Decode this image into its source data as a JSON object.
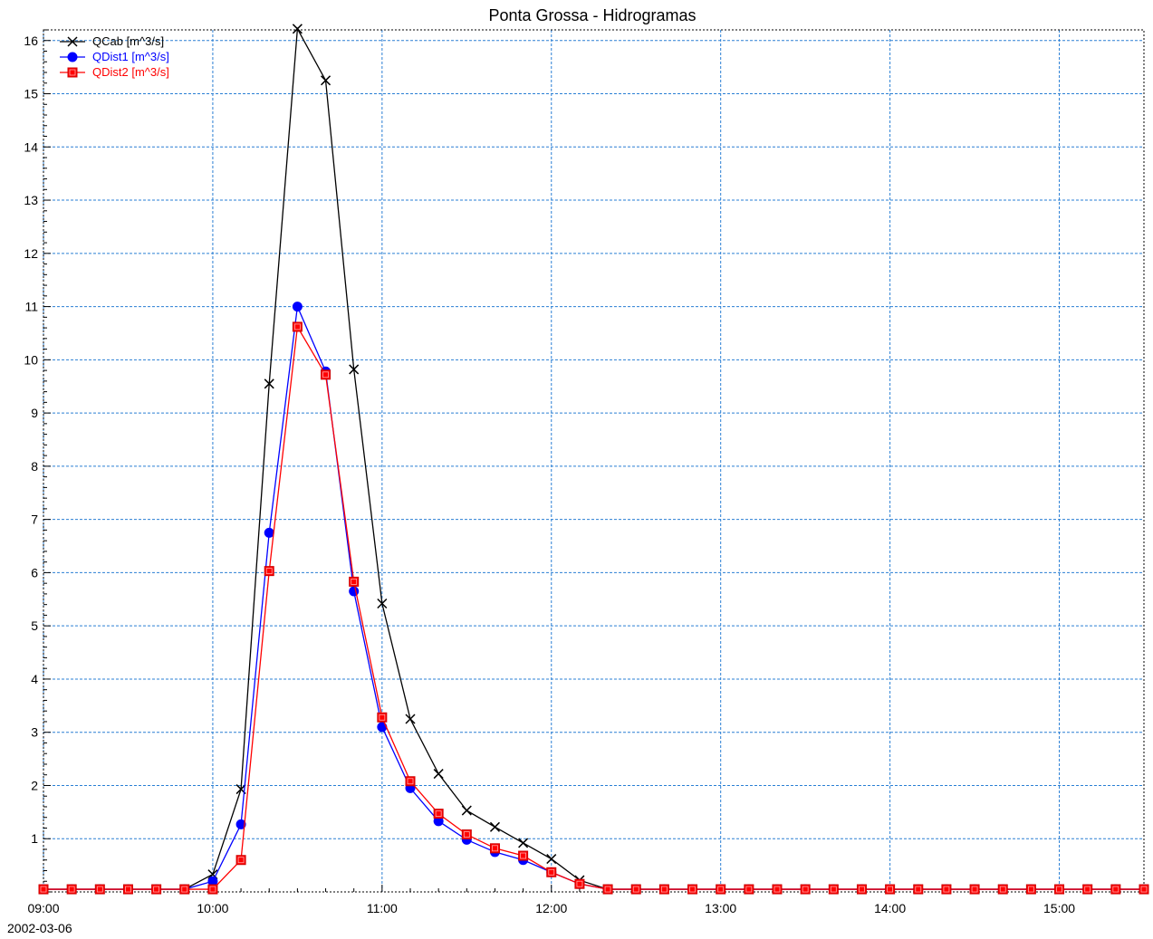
{
  "chart_data": {
    "type": "line",
    "title": "Ponta Grossa - Hidrogramas",
    "xlabel": "",
    "ylabel": "",
    "date_label": "2002-03-06",
    "x_tick_labels": [
      "09:00",
      "10:00",
      "11:00",
      "12:00",
      "13:00",
      "14:00",
      "15:00"
    ],
    "x_tick_hours": [
      9,
      10,
      11,
      12,
      13,
      14,
      15
    ],
    "xlim_hours": [
      9.0,
      15.5
    ],
    "ylim": [
      0,
      16.2
    ],
    "y_tick_labels": [
      "1",
      "2",
      "3",
      "4",
      "5",
      "6",
      "7",
      "8",
      "9",
      "10",
      "11",
      "12",
      "13",
      "14",
      "15",
      "16"
    ],
    "y_ticks": [
      1,
      2,
      3,
      4,
      5,
      6,
      7,
      8,
      9,
      10,
      11,
      12,
      13,
      14,
      15,
      16
    ],
    "grid": true,
    "legend_position": "top-left",
    "series": [
      {
        "name": "QCab [m^3/s]",
        "color": "#000000",
        "marker": "x",
        "points": [
          [
            9.0,
            0.05
          ],
          [
            9.1667,
            0.05
          ],
          [
            9.3333,
            0.05
          ],
          [
            9.5,
            0.05
          ],
          [
            9.6667,
            0.05
          ],
          [
            9.8333,
            0.05
          ],
          [
            10.0,
            0.33
          ],
          [
            10.1667,
            1.93
          ],
          [
            10.3333,
            9.55
          ],
          [
            10.5,
            16.22
          ],
          [
            10.6667,
            15.25
          ],
          [
            10.8333,
            9.82
          ],
          [
            11.0,
            5.42
          ],
          [
            11.1667,
            3.25
          ],
          [
            11.3333,
            2.22
          ],
          [
            11.5,
            1.53
          ],
          [
            11.6667,
            1.22
          ],
          [
            11.8333,
            0.92
          ],
          [
            12.0,
            0.62
          ],
          [
            12.1667,
            0.22
          ],
          [
            12.3333,
            0.05
          ],
          [
            12.5,
            0.05
          ],
          [
            12.6667,
            0.05
          ],
          [
            12.8333,
            0.05
          ],
          [
            13.0,
            0.05
          ],
          [
            13.1667,
            0.05
          ],
          [
            13.3333,
            0.05
          ],
          [
            13.5,
            0.05
          ],
          [
            13.6667,
            0.05
          ],
          [
            13.8333,
            0.05
          ],
          [
            14.0,
            0.05
          ],
          [
            14.1667,
            0.05
          ],
          [
            14.3333,
            0.05
          ],
          [
            14.5,
            0.05
          ],
          [
            14.6667,
            0.05
          ],
          [
            14.8333,
            0.05
          ],
          [
            15.0,
            0.05
          ],
          [
            15.1667,
            0.05
          ],
          [
            15.3333,
            0.05
          ],
          [
            15.5,
            0.05
          ]
        ]
      },
      {
        "name": "QDist1 [m^3/s]",
        "color": "#0000ff",
        "marker": "circle",
        "points": [
          [
            9.0,
            0.05
          ],
          [
            9.1667,
            0.05
          ],
          [
            9.3333,
            0.05
          ],
          [
            9.5,
            0.05
          ],
          [
            9.6667,
            0.05
          ],
          [
            9.8333,
            0.05
          ],
          [
            10.0,
            0.2
          ],
          [
            10.1667,
            1.27
          ],
          [
            10.3333,
            6.75
          ],
          [
            10.5,
            11.0
          ],
          [
            10.6667,
            9.78
          ],
          [
            10.8333,
            5.65
          ],
          [
            11.0,
            3.1
          ],
          [
            11.1667,
            1.95
          ],
          [
            11.3333,
            1.33
          ],
          [
            11.5,
            0.98
          ],
          [
            11.6667,
            0.75
          ],
          [
            11.8333,
            0.6
          ],
          [
            12.0,
            0.37
          ],
          [
            12.1667,
            0.15
          ],
          [
            12.3333,
            0.05
          ],
          [
            12.5,
            0.05
          ],
          [
            12.6667,
            0.05
          ],
          [
            12.8333,
            0.05
          ],
          [
            13.0,
            0.05
          ],
          [
            13.1667,
            0.05
          ],
          [
            13.3333,
            0.05
          ],
          [
            13.5,
            0.05
          ],
          [
            13.6667,
            0.05
          ],
          [
            13.8333,
            0.05
          ],
          [
            14.0,
            0.05
          ],
          [
            14.1667,
            0.05
          ],
          [
            14.3333,
            0.05
          ],
          [
            14.5,
            0.05
          ],
          [
            14.6667,
            0.05
          ],
          [
            14.8333,
            0.05
          ],
          [
            15.0,
            0.05
          ],
          [
            15.1667,
            0.05
          ],
          [
            15.3333,
            0.05
          ],
          [
            15.5,
            0.05
          ]
        ]
      },
      {
        "name": "QDist2 [m^3/s]",
        "color": "#ff0000",
        "marker": "square",
        "points": [
          [
            9.0,
            0.05
          ],
          [
            9.1667,
            0.05
          ],
          [
            9.3333,
            0.05
          ],
          [
            9.5,
            0.05
          ],
          [
            9.6667,
            0.05
          ],
          [
            9.8333,
            0.05
          ],
          [
            10.0,
            0.05
          ],
          [
            10.1667,
            0.6
          ],
          [
            10.3333,
            6.03
          ],
          [
            10.5,
            10.62
          ],
          [
            10.6667,
            9.72
          ],
          [
            10.8333,
            5.83
          ],
          [
            11.0,
            3.28
          ],
          [
            11.1667,
            2.08
          ],
          [
            11.3333,
            1.47
          ],
          [
            11.5,
            1.08
          ],
          [
            11.6667,
            0.82
          ],
          [
            11.8333,
            0.68
          ],
          [
            12.0,
            0.37
          ],
          [
            12.1667,
            0.15
          ],
          [
            12.3333,
            0.05
          ],
          [
            12.5,
            0.05
          ],
          [
            12.6667,
            0.05
          ],
          [
            12.8333,
            0.05
          ],
          [
            13.0,
            0.05
          ],
          [
            13.1667,
            0.05
          ],
          [
            13.3333,
            0.05
          ],
          [
            13.5,
            0.05
          ],
          [
            13.6667,
            0.05
          ],
          [
            13.8333,
            0.05
          ],
          [
            14.0,
            0.05
          ],
          [
            14.1667,
            0.05
          ],
          [
            14.3333,
            0.05
          ],
          [
            14.5,
            0.05
          ],
          [
            14.6667,
            0.05
          ],
          [
            14.8333,
            0.05
          ],
          [
            15.0,
            0.05
          ],
          [
            15.1667,
            0.05
          ],
          [
            15.3333,
            0.05
          ],
          [
            15.5,
            0.05
          ]
        ]
      }
    ]
  }
}
